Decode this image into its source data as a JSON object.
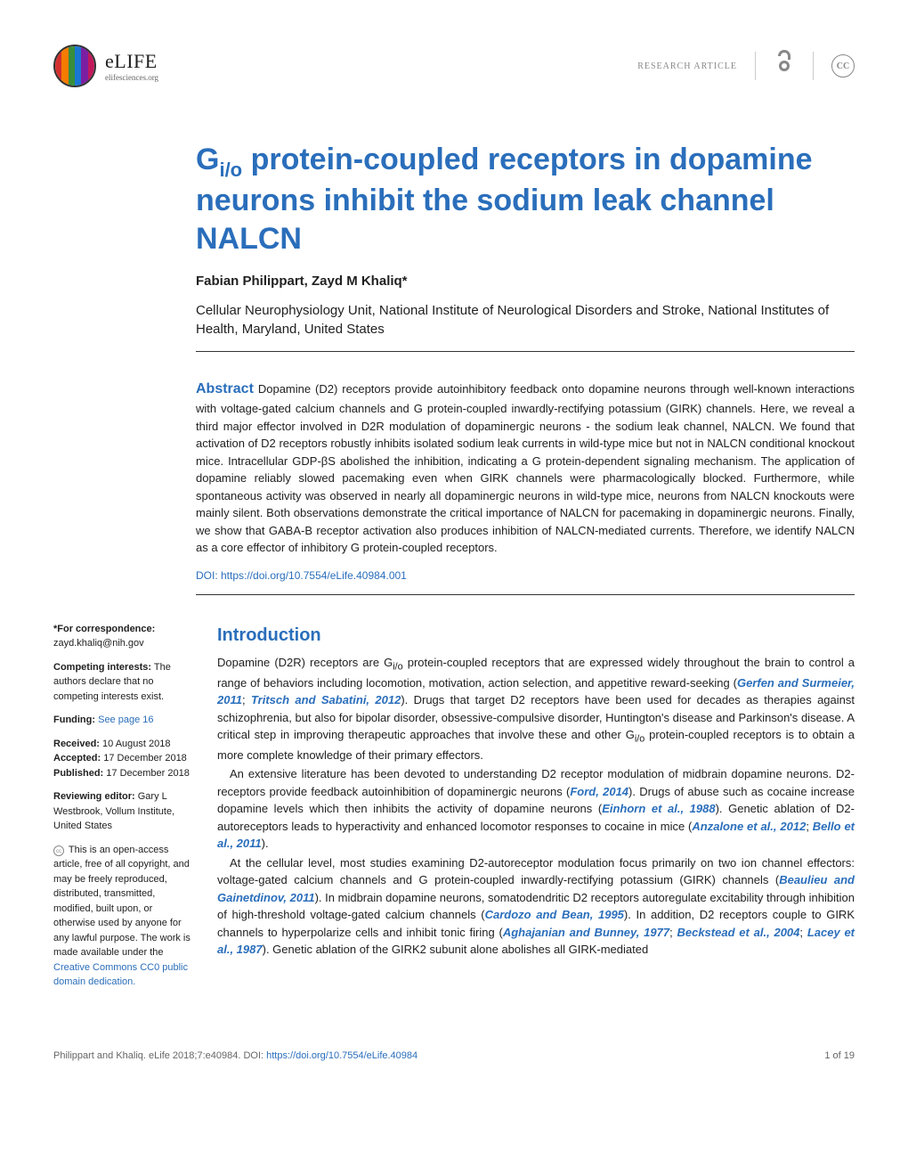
{
  "header": {
    "logo_name": "eLIFE",
    "logo_url": "elifesciences.org",
    "article_type": "RESEARCH ARTICLE",
    "cc_label": "CC",
    "logo_colors": [
      "#d32f2f",
      "#f57c00",
      "#388e3c",
      "#1976d2",
      "#7b1fa2",
      "#c2185b"
    ]
  },
  "title_html": "G<sub>i/o</sub> protein-coupled receptors in dopamine neurons inhibit the sodium leak channel NALCN",
  "authors": "Fabian Philippart, Zayd M Khaliq*",
  "affiliation": "Cellular Neurophysiology Unit, National Institute of Neurological Disorders and Stroke, National Institutes of Health, Maryland, United States",
  "abstract_label": "Abstract",
  "abstract_text": " Dopamine (D2) receptors provide autoinhibitory feedback onto dopamine neurons through well-known interactions with voltage-gated calcium channels and G protein-coupled inwardly-rectifying potassium (GIRK) channels. Here, we reveal a third major effector involved in D2R modulation of dopaminergic neurons - the sodium leak channel, NALCN. We found that activation of D2 receptors robustly inhibits isolated sodium leak currents in wild-type mice but not in NALCN conditional knockout mice. Intracellular GDP-βS abolished the inhibition, indicating a G protein-dependent signaling mechanism. The application of dopamine reliably slowed pacemaking even when GIRK channels were pharmacologically blocked. Furthermore, while spontaneous activity was observed in nearly all dopaminergic neurons in wild-type mice, neurons from NALCN knockouts were mainly silent. Both observations demonstrate the critical importance of NALCN for pacemaking in dopaminergic neurons. Finally, we show that GABA-B receptor activation also produces inhibition of NALCN-mediated currents. Therefore, we identify NALCN as a core effector of inhibitory G protein-coupled receptors.",
  "doi": "DOI: https://doi.org/10.7554/eLife.40984.001",
  "sidebar": {
    "correspondence_label": "*For correspondence:",
    "correspondence_email": "zayd.khaliq@nih.gov",
    "competing_label": "Competing interests:",
    "competing_text": " The authors declare that no competing interests exist.",
    "funding_label": "Funding:",
    "funding_link": " See page 16",
    "received_label": "Received:",
    "received_date": " 10 August 2018",
    "accepted_label": "Accepted:",
    "accepted_date": " 17 December 2018",
    "published_label": "Published:",
    "published_date": " 17 December 2018",
    "editor_label": "Reviewing editor:",
    "editor_text": " Gary L Westbrook, Vollum Institute, United States",
    "license_text": " This is an open-access article, free of all copyright, and may be freely reproduced, distributed, transmitted, modified, built upon, or otherwise used by anyone for any lawful purpose. The work is made available under the ",
    "license_link": "Creative Commons CC0 public domain dedication."
  },
  "introduction": {
    "heading": "Introduction",
    "p1_html": "Dopamine (D2R) receptors are G<sub>i/o</sub> protein-coupled receptors that are expressed widely throughout the brain to control a range of behaviors including locomotion, motivation, action selection, and appetitive reward-seeking (<span class=\"cite\">Gerfen and Surmeier, 2011</span>; <span class=\"cite\">Tritsch and Sabatini, 2012</span>). Drugs that target D2 receptors have been used for decades as therapies against schizophrenia, but also for bipolar disorder, obsessive-compulsive disorder, Huntington's disease and Parkinson's disease. A critical step in improving therapeutic approaches that involve these and other G<sub>i/o</sub> protein-coupled receptors is to obtain a more complete knowledge of their primary effectors.",
    "p2_html": "An extensive literature has been devoted to understanding D2 receptor modulation of midbrain dopamine neurons. D2-receptors provide feedback autoinhibition of dopaminergic neurons (<span class=\"cite\">Ford, 2014</span>). Drugs of abuse such as cocaine increase dopamine levels which then inhibits the activity of dopamine neurons (<span class=\"cite\">Einhorn et al., 1988</span>). Genetic ablation of D2-autoreceptors leads to hyperactivity and enhanced locomotor responses to cocaine in mice (<span class=\"cite\">Anzalone et al., 2012</span>; <span class=\"cite\">Bello et al., 2011</span>).",
    "p3_html": "At the cellular level, most studies examining D2-autoreceptor modulation focus primarily on two ion channel effectors: voltage-gated calcium channels and G protein-coupled inwardly-rectifying potassium (GIRK) channels (<span class=\"cite\">Beaulieu and Gainetdinov, 2011</span>). In midbrain dopamine neurons, somatodendritic D2 receptors autoregulate excitability through inhibition of high-threshold voltage-gated calcium channels (<span class=\"cite\">Cardozo and Bean, 1995</span>). In addition, D2 receptors couple to GIRK channels to hyperpolarize cells and inhibit tonic firing (<span class=\"cite\">Aghajanian and Bunney, 1977</span>; <span class=\"cite\">Beckstead et al., 2004</span>; <span class=\"cite\">Lacey et al., 1987</span>). Genetic ablation of the GIRK2 subunit alone abolishes all GIRK-mediated"
  },
  "footer": {
    "citation": "Philippart and Khaliq. eLife 2018;7:e40984. DOI: ",
    "doi_link": "https://doi.org/10.7554/eLife.40984",
    "page": "1 of 19"
  }
}
